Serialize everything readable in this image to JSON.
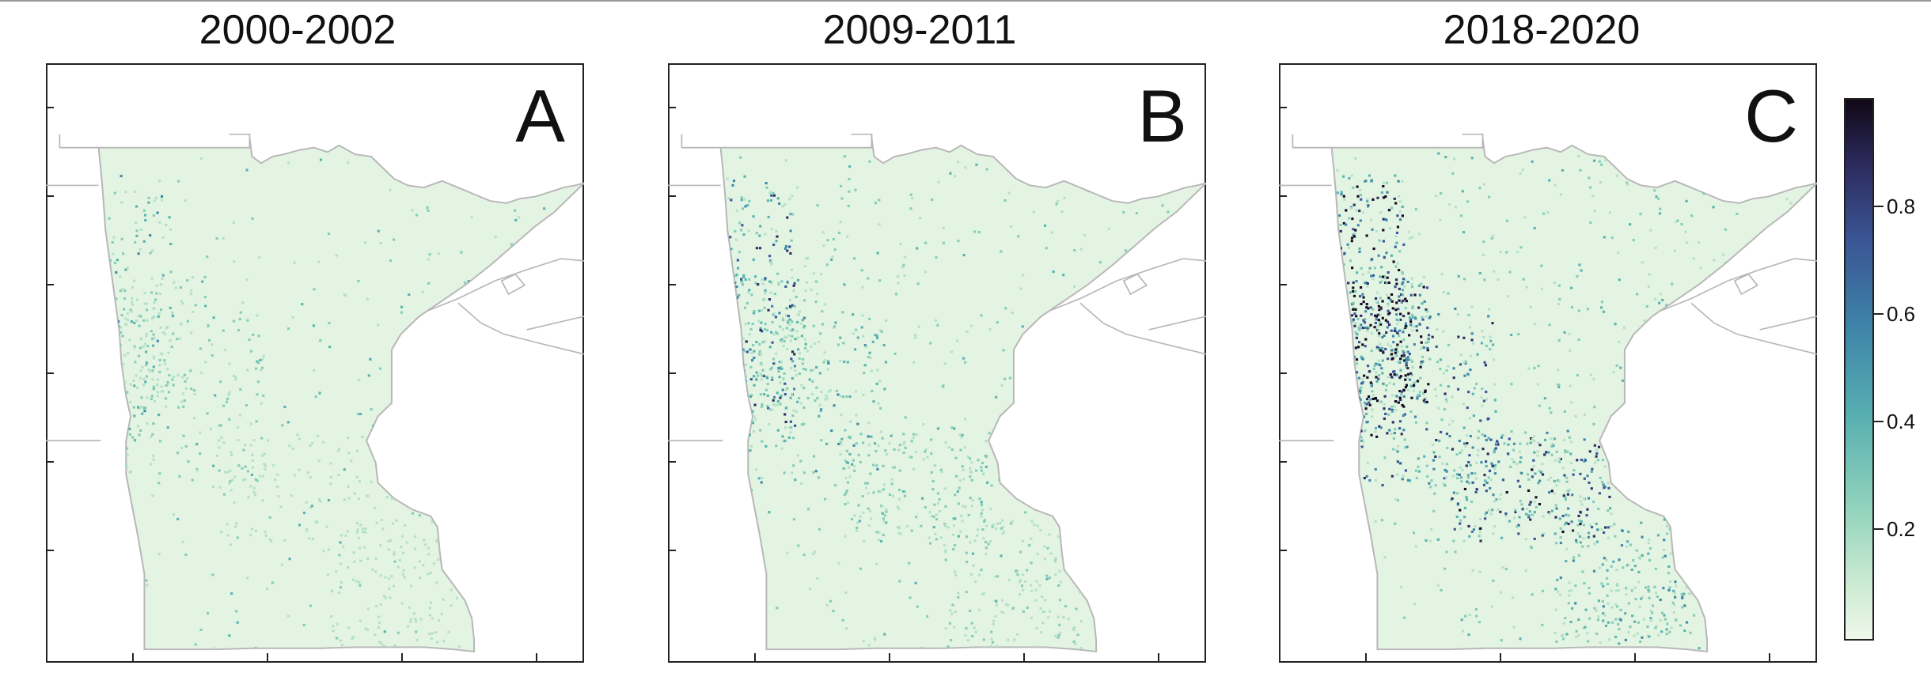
{
  "panels": [
    {
      "title": "2000-2002",
      "letter": "A",
      "period": 1
    },
    {
      "title": "2009-2011",
      "letter": "B",
      "period": 2
    },
    {
      "title": "2018-2020",
      "letter": "C",
      "period": 3
    }
  ],
  "legend": {
    "range": [
      0,
      1
    ],
    "ticks": [
      {
        "value": 0.2,
        "label": "0.2"
      },
      {
        "value": 0.4,
        "label": "0.4"
      },
      {
        "value": 0.6,
        "label": "0.6"
      },
      {
        "value": 0.8,
        "label": "0.8"
      }
    ]
  },
  "colors": {
    "state_fill": "#e4f4e3",
    "outline": "#b8b8b8",
    "frame": "#222222",
    "low": "#cdebd3",
    "mid": "#3e83a8",
    "high": "#100816"
  }
}
